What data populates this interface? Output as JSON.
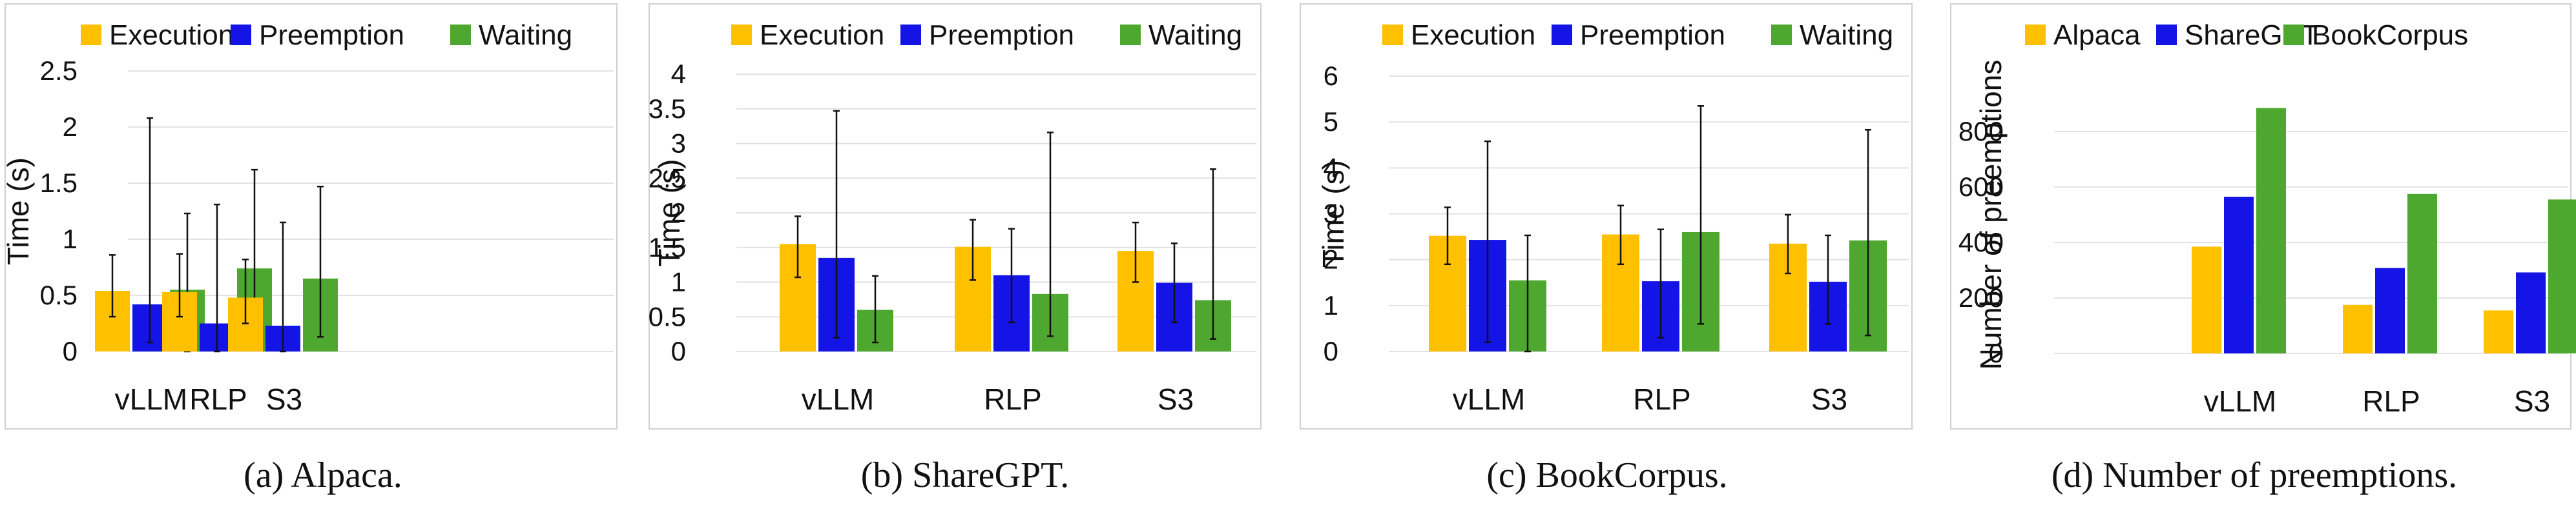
{
  "chart_data": [
    {
      "type": "bar",
      "caption": "(a) Alpaca.",
      "ylabel": "Time (s)",
      "xlabel": "",
      "ylim": [
        0,
        2.5
      ],
      "yticks": [
        "0",
        "0.5",
        "1",
        "1.5",
        "2",
        "2.5"
      ],
      "legend_position": "top",
      "grid": true,
      "error_bars": true,
      "categories": [
        "vLLM",
        "RLP",
        "S3"
      ],
      "series": [
        {
          "name": "Execution",
          "color": "#FFC000",
          "values": [
            0.54,
            0.53,
            0.48
          ],
          "err_low": [
            0.31,
            0.31,
            0.25
          ],
          "err_high": [
            0.86,
            0.87,
            0.82
          ]
        },
        {
          "name": "Preemption",
          "color": "#1414E6",
          "values": [
            0.42,
            0.25,
            0.23
          ],
          "err_low": [
            0.08,
            0.0,
            0.0
          ],
          "err_high": [
            2.08,
            1.31,
            1.15
          ]
        },
        {
          "name": "Waiting",
          "color": "#4EA72E",
          "values": [
            0.55,
            0.74,
            0.65
          ],
          "err_low": [
            0.0,
            0.18,
            0.13
          ],
          "err_high": [
            1.23,
            1.62,
            1.47
          ]
        }
      ]
    },
    {
      "type": "bar",
      "caption": "(b) ShareGPT.",
      "ylabel": "Time (s)",
      "xlabel": "",
      "ylim": [
        0,
        4
      ],
      "yticks": [
        "0",
        "0.5",
        "1",
        "1.5",
        "2",
        "2.5",
        "3",
        "3.5",
        "4"
      ],
      "legend_position": "top",
      "grid": true,
      "error_bars": true,
      "categories": [
        "vLLM",
        "RLP",
        "S3"
      ],
      "series": [
        {
          "name": "Execution",
          "color": "#FFC000",
          "values": [
            1.55,
            1.51,
            1.45
          ],
          "err_low": [
            1.07,
            1.03,
            1.0
          ],
          "err_high": [
            1.95,
            1.9,
            1.86
          ]
        },
        {
          "name": "Preemption",
          "color": "#1414E6",
          "values": [
            1.35,
            1.1,
            0.99
          ],
          "err_low": [
            0.2,
            0.42,
            0.42
          ],
          "err_high": [
            3.47,
            1.77,
            1.56
          ]
        },
        {
          "name": "Waiting",
          "color": "#4EA72E",
          "values": [
            0.6,
            0.83,
            0.74
          ],
          "err_low": [
            0.13,
            0.22,
            0.18
          ],
          "err_high": [
            1.09,
            3.16,
            2.63
          ]
        }
      ]
    },
    {
      "type": "bar",
      "caption": "(c) BookCorpus.",
      "ylabel": "Time (s)",
      "xlabel": "",
      "ylim": [
        0,
        6
      ],
      "yticks": [
        "0",
        "1",
        "2",
        "3",
        "4",
        "5",
        "6"
      ],
      "legend_position": "top",
      "grid": true,
      "error_bars": true,
      "categories": [
        "vLLM",
        "RLP",
        "S3"
      ],
      "series": [
        {
          "name": "Execution",
          "color": "#FFC000",
          "values": [
            2.52,
            2.55,
            2.35
          ],
          "err_low": [
            1.9,
            1.9,
            1.7
          ],
          "err_high": [
            3.14,
            3.18,
            2.98
          ]
        },
        {
          "name": "Preemption",
          "color": "#1414E6",
          "values": [
            2.43,
            1.53,
            1.52
          ],
          "err_low": [
            0.2,
            0.3,
            0.6
          ],
          "err_high": [
            4.58,
            2.66,
            2.53
          ]
        },
        {
          "name": "Waiting",
          "color": "#4EA72E",
          "values": [
            1.55,
            2.6,
            2.42
          ],
          "err_low": [
            0.0,
            0.6,
            0.35
          ],
          "err_high": [
            2.53,
            5.35,
            4.83
          ]
        }
      ]
    },
    {
      "type": "bar",
      "caption": "(d) Number of preemptions.",
      "ylabel": "Number of preemptions",
      "xlabel": "",
      "ylim": [
        0,
        1000
      ],
      "yticks": [
        "0",
        "200",
        "400",
        "600",
        "800"
      ],
      "legend_position": "top",
      "grid": true,
      "error_bars": false,
      "categories": [
        "vLLM",
        "RLP",
        "S3"
      ],
      "series": [
        {
          "name": "Alpaca",
          "color": "#FFC000",
          "values": [
            385,
            175,
            155
          ]
        },
        {
          "name": "ShareGPT",
          "color": "#1414E6",
          "values": [
            565,
            308,
            292
          ]
        },
        {
          "name": "BookCorpus",
          "color": "#4EA72E",
          "values": [
            885,
            575,
            555
          ]
        }
      ]
    }
  ]
}
